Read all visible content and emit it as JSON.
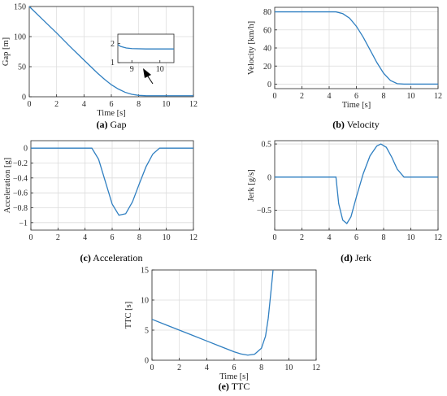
{
  "chart_data": [
    {
      "id": "gap",
      "type": "line",
      "caption_tag": "(a)",
      "caption_text": "Gap",
      "xlabel": "Time [s]",
      "ylabel": "Gap [m]",
      "xlim": [
        0,
        12
      ],
      "ylim": [
        0,
        150
      ],
      "xticks": [
        0,
        2,
        4,
        6,
        8,
        10,
        12
      ],
      "yticks": [
        0,
        50,
        100,
        150
      ],
      "grid": true,
      "series": [
        {
          "x": [
            0,
            1,
            2,
            3,
            4,
            4.5,
            5,
            5.5,
            6,
            6.5,
            7,
            7.5,
            8,
            8.5,
            9,
            10,
            11,
            12
          ],
          "y": [
            150,
            128,
            106,
            83,
            61,
            50,
            39,
            29,
            20,
            13,
            7.5,
            4,
            2.3,
            1.8,
            1.7,
            1.7,
            1.7,
            1.7
          ]
        }
      ],
      "inset": {
        "xlim": [
          8.5,
          10.5
        ],
        "ylim": [
          1,
          2.5
        ],
        "xticks": [
          9,
          10
        ],
        "yticks": [
          1,
          2
        ],
        "series": [
          {
            "x": [
              8.5,
              8.6,
              8.8,
              9,
              9.5,
              10,
              10.5
            ],
            "y": [
              1.95,
              1.85,
              1.77,
              1.74,
              1.72,
              1.72,
              1.72
            ]
          }
        ]
      }
    },
    {
      "id": "velocity",
      "type": "line",
      "caption_tag": "(b)",
      "caption_text": "Velocity",
      "xlabel": "Time [s]",
      "ylabel": "Velocity [km/h]",
      "xlim": [
        0,
        12
      ],
      "ylim": [
        -5,
        85
      ],
      "xticks": [
        0,
        2,
        4,
        6,
        8,
        10,
        12
      ],
      "yticks": [
        0,
        20,
        40,
        60,
        80
      ],
      "grid": true,
      "series": [
        {
          "x": [
            0,
            4.5,
            5,
            5.5,
            6,
            6.5,
            7,
            7.5,
            8,
            8.5,
            9,
            9.5,
            10,
            12
          ],
          "y": [
            80,
            80,
            78,
            73,
            64,
            52,
            38,
            24,
            12,
            4,
            0.5,
            0,
            0,
            0
          ]
        }
      ]
    },
    {
      "id": "acceleration",
      "type": "line",
      "caption_tag": "(c)",
      "caption_text": "Acceleration",
      "xlabel": "",
      "ylabel": "Acceleration [g]",
      "xlim": [
        0,
        12
      ],
      "ylim": [
        -1.1,
        0.1
      ],
      "xticks": [
        0,
        2,
        4,
        6,
        8,
        10,
        12
      ],
      "yticks": [
        0,
        -0.2,
        -0.4,
        -0.6,
        -0.8,
        -1
      ],
      "grid": true,
      "series": [
        {
          "x": [
            0,
            4.5,
            5,
            5.5,
            6,
            6.5,
            7,
            7.5,
            8,
            8.5,
            9,
            9.5,
            10,
            12
          ],
          "y": [
            0,
            0,
            -0.15,
            -0.45,
            -0.75,
            -0.9,
            -0.88,
            -0.72,
            -0.48,
            -0.25,
            -0.08,
            0,
            0,
            0
          ]
        }
      ]
    },
    {
      "id": "jerk",
      "type": "line",
      "caption_tag": "(d)",
      "caption_text": "Jerk",
      "xlabel": "",
      "ylabel": "Jerk [g/s]",
      "xlim": [
        0,
        12
      ],
      "ylim": [
        -0.8,
        0.55
      ],
      "xticks": [
        0,
        2,
        4,
        6,
        8,
        10,
        12
      ],
      "yticks": [
        -0.5,
        0,
        0.5
      ],
      "grid": true,
      "series": [
        {
          "x": [
            0,
            4.5,
            4.7,
            5,
            5.3,
            5.6,
            6,
            6.5,
            7,
            7.5,
            7.8,
            8.2,
            8.6,
            9,
            9.5,
            10,
            12
          ],
          "y": [
            0,
            0,
            -0.4,
            -0.65,
            -0.7,
            -0.6,
            -0.3,
            0.05,
            0.32,
            0.47,
            0.5,
            0.45,
            0.3,
            0.12,
            0,
            0,
            0
          ]
        }
      ]
    },
    {
      "id": "ttc",
      "type": "line",
      "caption_tag": "(e)",
      "caption_text": "TTC",
      "xlabel": "Time [s]",
      "ylabel": "TTC [s]",
      "xlim": [
        0,
        12
      ],
      "ylim": [
        0,
        15
      ],
      "xticks": [
        0,
        2,
        4,
        6,
        8,
        10,
        12
      ],
      "yticks": [
        0,
        5,
        10,
        15
      ],
      "grid": true,
      "series": [
        {
          "x": [
            0,
            1,
            2,
            3,
            4,
            5,
            6,
            6.5,
            7,
            7.5,
            8,
            8.3,
            8.5,
            8.7,
            8.85
          ],
          "y": [
            6.8,
            5.9,
            5.0,
            4.1,
            3.2,
            2.3,
            1.4,
            1.05,
            0.85,
            1.0,
            2.0,
            4.0,
            7.0,
            11.5,
            15
          ]
        }
      ]
    }
  ]
}
